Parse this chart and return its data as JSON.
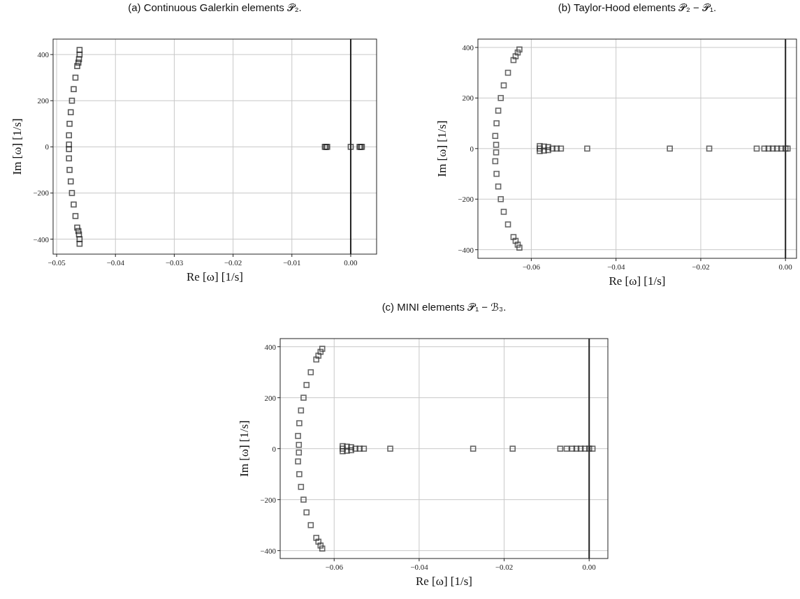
{
  "chart_data": [
    {
      "type": "scatter",
      "title": "(a) Continuous Galerkin elements 𝒫₂.",
      "xlabel": "Re [ω] [1/s]",
      "ylabel": "Im [ω] [1/s]",
      "xlim": [
        -0.0506,
        0.0044
      ],
      "ylim": [
        -465,
        467
      ],
      "xticks": [
        {
          "value": -0.05,
          "label": "−0.05"
        },
        {
          "value": -0.04,
          "label": "−0.04"
        },
        {
          "value": -0.03,
          "label": "−0.03"
        },
        {
          "value": -0.02,
          "label": "−0.02"
        },
        {
          "value": -0.01,
          "label": "−0.01"
        },
        {
          "value": 0,
          "label": "0.00"
        }
      ],
      "yticks": [
        -400,
        -200,
        0,
        200,
        400
      ],
      "grid": true,
      "marker": "square",
      "ref_lines": [
        {
          "axis": "x",
          "value": 0,
          "color": "#222222"
        }
      ],
      "series": [
        {
          "color": "#222222",
          "x": [
            -0.0461,
            -0.0461,
            -0.0462,
            -0.0463,
            -0.0465,
            -0.0468,
            -0.0471,
            -0.0474,
            -0.0476,
            -0.0478,
            -0.0479,
            -0.0479,
            -0.0479,
            -0.0479,
            -0.0478,
            -0.0476,
            -0.0474,
            -0.0471,
            -0.0468,
            -0.0465,
            -0.0463,
            -0.0462,
            -0.0461,
            -0.0461,
            -0.0044,
            -0.0042,
            -0.004,
            0.0,
            0.0015,
            0.0017,
            0.0019
          ],
          "values": [
            420,
            400,
            380,
            365,
            350,
            300,
            250,
            200,
            150,
            100,
            50,
            10,
            -10,
            -50,
            -100,
            -150,
            -200,
            -250,
            -300,
            -350,
            -365,
            -380,
            -400,
            -420,
            0,
            0,
            0,
            0,
            0,
            0,
            0
          ]
        }
      ]
    },
    {
      "type": "scatter",
      "title": "(b) Taylor-Hood elements 𝒫₂ − 𝒫₁.",
      "xlabel": "Re [ω] [1/s]",
      "ylabel": "Im [ω] [1/s]",
      "xlim": [
        -0.0726,
        0.0026
      ],
      "ylim": [
        -434,
        433
      ],
      "xticks": [
        {
          "value": -0.06,
          "label": "−0.06"
        },
        {
          "value": -0.04,
          "label": "−0.04"
        },
        {
          "value": -0.02,
          "label": "−0.02"
        },
        {
          "value": 0,
          "label": "0.00"
        }
      ],
      "yticks": [
        -400,
        -200,
        0,
        200,
        400
      ],
      "grid": true,
      "marker": "square",
      "ref_lines": [
        {
          "axis": "x",
          "value": 0,
          "color": "#222222"
        }
      ],
      "series": [
        {
          "color": "#333333",
          "x": [
            -0.0628,
            -0.0632,
            -0.0637,
            -0.0642,
            -0.0655,
            -0.0665,
            -0.0672,
            -0.0678,
            -0.0682,
            -0.0685,
            -0.0683,
            -0.0683,
            -0.0685,
            -0.0682,
            -0.0678,
            -0.0672,
            -0.0665,
            -0.0655,
            -0.0642,
            -0.0637,
            -0.0632,
            -0.0628,
            -0.058,
            -0.058,
            -0.058,
            -0.057,
            -0.057,
            -0.056,
            -0.056,
            -0.055,
            -0.054,
            -0.053,
            -0.0468,
            -0.0273,
            -0.018,
            -0.0068,
            -0.005,
            -0.004,
            -0.003,
            -0.002,
            -0.001,
            0.0,
            0.0005
          ],
          "values": [
            392,
            380,
            365,
            350,
            300,
            250,
            200,
            150,
            100,
            50,
            15,
            -15,
            -50,
            -100,
            -150,
            -200,
            -250,
            -300,
            -350,
            -365,
            -380,
            -392,
            10,
            0,
            -10,
            8,
            -8,
            6,
            -6,
            0,
            0,
            0,
            0,
            0,
            0,
            0,
            0,
            0,
            0,
            0,
            0,
            0,
            0
          ]
        }
      ]
    },
    {
      "type": "scatter",
      "title": "(c) MINI elements 𝒫₁ − ℬ₃.",
      "xlabel": "Re [ω] [1/s]",
      "ylabel": "Im [ω] [1/s]",
      "xlim": [
        -0.0727,
        0.0044
      ],
      "ylim": [
        -431,
        432
      ],
      "xticks": [
        {
          "value": -0.06,
          "label": "−0.06"
        },
        {
          "value": -0.04,
          "label": "−0.04"
        },
        {
          "value": -0.02,
          "label": "−0.02"
        },
        {
          "value": 0,
          "label": "0.00"
        }
      ],
      "yticks": [
        -400,
        -200,
        0,
        200,
        400
      ],
      "grid": true,
      "marker": "square",
      "ref_lines": [
        {
          "axis": "x",
          "value": 0,
          "color": "#222222"
        }
      ],
      "series": [
        {
          "color": "#333333",
          "x": [
            -0.0628,
            -0.0632,
            -0.0637,
            -0.0642,
            -0.0655,
            -0.0665,
            -0.0672,
            -0.0678,
            -0.0682,
            -0.0685,
            -0.0683,
            -0.0683,
            -0.0685,
            -0.0682,
            -0.0678,
            -0.0672,
            -0.0665,
            -0.0655,
            -0.0642,
            -0.0637,
            -0.0632,
            -0.0628,
            -0.058,
            -0.058,
            -0.058,
            -0.057,
            -0.057,
            -0.056,
            -0.056,
            -0.055,
            -0.054,
            -0.053,
            -0.0468,
            -0.0273,
            -0.018,
            -0.0068,
            -0.0053,
            -0.004,
            -0.003,
            -0.002,
            -0.001,
            0.0,
            0.0008
          ],
          "values": [
            392,
            380,
            365,
            350,
            300,
            250,
            200,
            150,
            100,
            50,
            15,
            -15,
            -50,
            -100,
            -150,
            -200,
            -250,
            -300,
            -350,
            -365,
            -380,
            -392,
            10,
            0,
            -10,
            8,
            -8,
            6,
            -6,
            0,
            0,
            0,
            0,
            0,
            0,
            0,
            0,
            0,
            0,
            0,
            0,
            0,
            0
          ]
        }
      ]
    }
  ]
}
